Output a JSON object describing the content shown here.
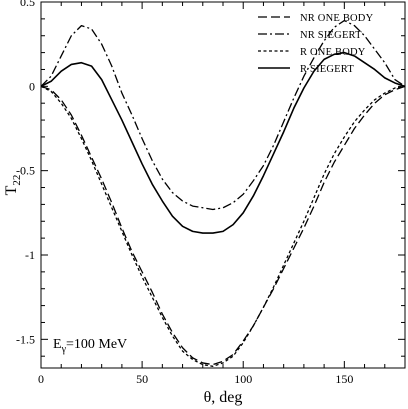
{
  "chart_data": {
    "type": "line",
    "title": "",
    "xlabel": "θ, deg",
    "ylabel": "T",
    "ylabel_subscript": "22",
    "xlim": [
      0,
      180
    ],
    "ylim": [
      -1.67,
      0.5
    ],
    "xticks": [
      0,
      50,
      100,
      150
    ],
    "xtick_labels": [
      "0",
      "50",
      "100",
      "150"
    ],
    "yticks": [
      0.5,
      0,
      -0.5,
      -1,
      -1.5
    ],
    "ytick_labels": [
      "0.5",
      "0",
      "-0.5",
      "-1",
      "-1.5"
    ],
    "grid": false,
    "legend_position": "top-right",
    "annotation": {
      "base": "E",
      "subscript": "γ",
      "rest": "=100 MeV",
      "position": "bottom-left"
    },
    "series": [
      {
        "name": "NR ONE BODY",
        "style": "dashed",
        "color": "#000000",
        "points": [
          [
            0,
            0
          ],
          [
            5,
            -0.02
          ],
          [
            10,
            -0.08
          ],
          [
            15,
            -0.17
          ],
          [
            20,
            -0.29
          ],
          [
            25,
            -0.42
          ],
          [
            30,
            -0.55
          ],
          [
            35,
            -0.69
          ],
          [
            40,
            -0.84
          ],
          [
            45,
            -0.98
          ],
          [
            50,
            -1.1
          ],
          [
            55,
            -1.22
          ],
          [
            60,
            -1.35
          ],
          [
            65,
            -1.46
          ],
          [
            70,
            -1.55
          ],
          [
            75,
            -1.61
          ],
          [
            80,
            -1.64
          ],
          [
            85,
            -1.65
          ],
          [
            90,
            -1.63
          ],
          [
            95,
            -1.59
          ],
          [
            100,
            -1.51
          ],
          [
            105,
            -1.42
          ],
          [
            110,
            -1.31
          ],
          [
            115,
            -1.2
          ],
          [
            120,
            -1.08
          ],
          [
            125,
            -0.96
          ],
          [
            130,
            -0.84
          ],
          [
            135,
            -0.71
          ],
          [
            140,
            -0.57
          ],
          [
            145,
            -0.45
          ],
          [
            150,
            -0.35
          ],
          [
            155,
            -0.25
          ],
          [
            160,
            -0.17
          ],
          [
            165,
            -0.1
          ],
          [
            170,
            -0.05
          ],
          [
            175,
            -0.02
          ],
          [
            180,
            0
          ]
        ]
      },
      {
        "name": "NR SIEGERT",
        "style": "dashdot",
        "color": "#000000",
        "points": [
          [
            0,
            0
          ],
          [
            5,
            0.06
          ],
          [
            10,
            0.18
          ],
          [
            15,
            0.3
          ],
          [
            20,
            0.36
          ],
          [
            25,
            0.34
          ],
          [
            30,
            0.25
          ],
          [
            35,
            0.12
          ],
          [
            40,
            -0.04
          ],
          [
            45,
            -0.17
          ],
          [
            50,
            -0.31
          ],
          [
            55,
            -0.44
          ],
          [
            60,
            -0.55
          ],
          [
            65,
            -0.63
          ],
          [
            70,
            -0.68
          ],
          [
            75,
            -0.71
          ],
          [
            80,
            -0.72
          ],
          [
            85,
            -0.73
          ],
          [
            90,
            -0.72
          ],
          [
            95,
            -0.69
          ],
          [
            100,
            -0.64
          ],
          [
            105,
            -0.56
          ],
          [
            110,
            -0.47
          ],
          [
            115,
            -0.35
          ],
          [
            120,
            -0.21
          ],
          [
            125,
            -0.07
          ],
          [
            130,
            0.06
          ],
          [
            135,
            0.17
          ],
          [
            140,
            0.27
          ],
          [
            145,
            0.35
          ],
          [
            150,
            0.39
          ],
          [
            155,
            0.36
          ],
          [
            160,
            0.3
          ],
          [
            165,
            0.22
          ],
          [
            170,
            0.14
          ],
          [
            175,
            0.04
          ],
          [
            180,
            0
          ]
        ]
      },
      {
        "name": "R ONE BODY",
        "style": "dotted",
        "color": "#000000",
        "points": [
          [
            0,
            0
          ],
          [
            5,
            -0.03
          ],
          [
            10,
            -0.1
          ],
          [
            15,
            -0.19
          ],
          [
            20,
            -0.31
          ],
          [
            25,
            -0.44
          ],
          [
            30,
            -0.58
          ],
          [
            35,
            -0.72
          ],
          [
            40,
            -0.86
          ],
          [
            45,
            -1
          ],
          [
            50,
            -1.13
          ],
          [
            55,
            -1.25
          ],
          [
            60,
            -1.37
          ],
          [
            65,
            -1.48
          ],
          [
            70,
            -1.57
          ],
          [
            75,
            -1.62
          ],
          [
            80,
            -1.65
          ],
          [
            85,
            -1.66
          ],
          [
            90,
            -1.64
          ],
          [
            95,
            -1.6
          ],
          [
            100,
            -1.52
          ],
          [
            105,
            -1.42
          ],
          [
            110,
            -1.31
          ],
          [
            115,
            -1.19
          ],
          [
            120,
            -1.06
          ],
          [
            125,
            -0.93
          ],
          [
            130,
            -0.8
          ],
          [
            135,
            -0.66
          ],
          [
            140,
            -0.52
          ],
          [
            145,
            -0.4
          ],
          [
            150,
            -0.3
          ],
          [
            155,
            -0.21
          ],
          [
            160,
            -0.14
          ],
          [
            165,
            -0.08
          ],
          [
            170,
            -0.04
          ],
          [
            175,
            -0.01
          ],
          [
            180,
            0
          ]
        ]
      },
      {
        "name": "R SIEGERT",
        "style": "solid",
        "color": "#000000",
        "points": [
          [
            0,
            0
          ],
          [
            5,
            0.03
          ],
          [
            10,
            0.09
          ],
          [
            15,
            0.13
          ],
          [
            20,
            0.14
          ],
          [
            25,
            0.12
          ],
          [
            30,
            0.04
          ],
          [
            35,
            -0.08
          ],
          [
            40,
            -0.2
          ],
          [
            45,
            -0.33
          ],
          [
            50,
            -0.46
          ],
          [
            55,
            -0.58
          ],
          [
            60,
            -0.68
          ],
          [
            65,
            -0.77
          ],
          [
            70,
            -0.83
          ],
          [
            75,
            -0.86
          ],
          [
            80,
            -0.87
          ],
          [
            85,
            -0.87
          ],
          [
            90,
            -0.86
          ],
          [
            95,
            -0.82
          ],
          [
            100,
            -0.75
          ],
          [
            105,
            -0.65
          ],
          [
            110,
            -0.53
          ],
          [
            115,
            -0.4
          ],
          [
            120,
            -0.27
          ],
          [
            125,
            -0.13
          ],
          [
            130,
            -0.01
          ],
          [
            135,
            0.09
          ],
          [
            140,
            0.16
          ],
          [
            145,
            0.19
          ],
          [
            150,
            0.2
          ],
          [
            155,
            0.18
          ],
          [
            160,
            0.14
          ],
          [
            165,
            0.1
          ],
          [
            170,
            0.05
          ],
          [
            175,
            0.02
          ],
          [
            180,
            0
          ]
        ]
      }
    ]
  }
}
